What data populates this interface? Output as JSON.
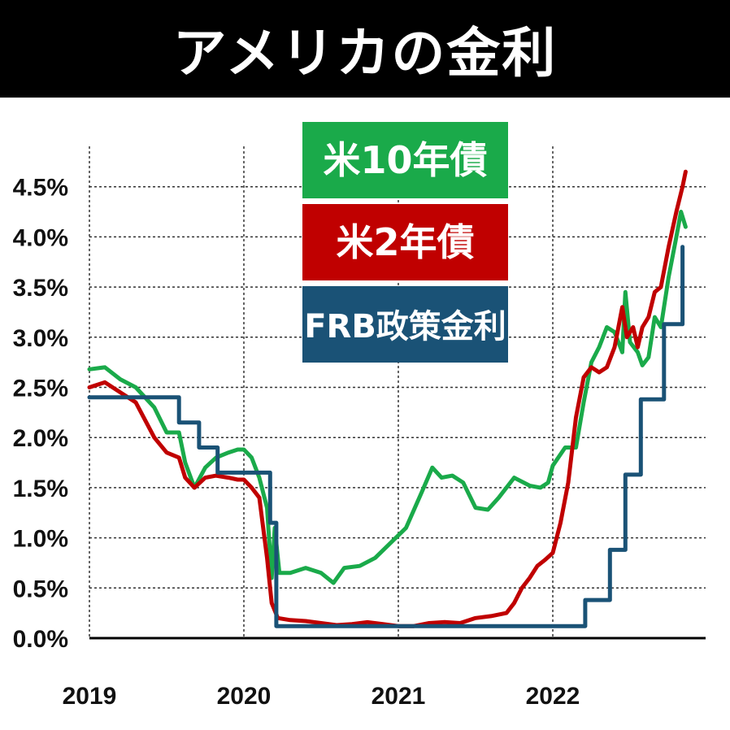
{
  "header": {
    "title": "アメリカの金利"
  },
  "chart_data": {
    "type": "line",
    "title": "アメリカの金利",
    "ylim": [
      0,
      5.0
    ],
    "yticks": [
      "4.5%",
      "4.0%",
      "3.5%",
      "3.0%",
      "2.5%",
      "2.0%",
      "1.5%",
      "1.0%",
      "0.5%",
      "0.0%"
    ],
    "ytick_values": [
      4.5,
      4.0,
      3.5,
      3.0,
      2.5,
      2.0,
      1.5,
      1.0,
      0.5,
      0.0
    ],
    "xlim": [
      2019.0,
      2022.98
    ],
    "xticks": [
      "2019",
      "2020",
      "2021",
      "2022"
    ],
    "xtick_values": [
      2019,
      2020,
      2021,
      2022
    ],
    "grid": true,
    "legend_position": "top-center",
    "series": [
      {
        "name": "米10年債",
        "color": "#1aaa4a",
        "points": [
          [
            2019.0,
            2.68
          ],
          [
            2019.1,
            2.7
          ],
          [
            2019.2,
            2.58
          ],
          [
            2019.3,
            2.5
          ],
          [
            2019.42,
            2.3
          ],
          [
            2019.5,
            2.05
          ],
          [
            2019.58,
            2.05
          ],
          [
            2019.62,
            1.75
          ],
          [
            2019.68,
            1.5
          ],
          [
            2019.75,
            1.7
          ],
          [
            2019.82,
            1.8
          ],
          [
            2019.9,
            1.85
          ],
          [
            2019.96,
            1.88
          ],
          [
            2020.0,
            1.88
          ],
          [
            2020.05,
            1.8
          ],
          [
            2020.1,
            1.6
          ],
          [
            2020.15,
            1.3
          ],
          [
            2020.18,
            0.6
          ],
          [
            2020.2,
            1.1
          ],
          [
            2020.23,
            0.65
          ],
          [
            2020.3,
            0.65
          ],
          [
            2020.4,
            0.7
          ],
          [
            2020.5,
            0.65
          ],
          [
            2020.58,
            0.55
          ],
          [
            2020.65,
            0.7
          ],
          [
            2020.75,
            0.72
          ],
          [
            2020.85,
            0.8
          ],
          [
            2020.95,
            0.95
          ],
          [
            2021.05,
            1.1
          ],
          [
            2021.15,
            1.45
          ],
          [
            2021.22,
            1.7
          ],
          [
            2021.28,
            1.6
          ],
          [
            2021.35,
            1.62
          ],
          [
            2021.42,
            1.55
          ],
          [
            2021.5,
            1.3
          ],
          [
            2021.58,
            1.28
          ],
          [
            2021.65,
            1.4
          ],
          [
            2021.75,
            1.6
          ],
          [
            2021.85,
            1.52
          ],
          [
            2021.92,
            1.5
          ],
          [
            2021.97,
            1.55
          ],
          [
            2022.0,
            1.72
          ],
          [
            2022.08,
            1.9
          ],
          [
            2022.15,
            1.9
          ],
          [
            2022.2,
            2.35
          ],
          [
            2022.25,
            2.75
          ],
          [
            2022.3,
            2.9
          ],
          [
            2022.35,
            3.1
          ],
          [
            2022.4,
            3.05
          ],
          [
            2022.45,
            2.85
          ],
          [
            2022.47,
            3.45
          ],
          [
            2022.5,
            2.95
          ],
          [
            2022.55,
            2.85
          ],
          [
            2022.58,
            2.72
          ],
          [
            2022.62,
            2.8
          ],
          [
            2022.66,
            3.2
          ],
          [
            2022.7,
            3.1
          ],
          [
            2022.75,
            3.6
          ],
          [
            2022.8,
            4.0
          ],
          [
            2022.83,
            4.25
          ],
          [
            2022.86,
            4.1
          ]
        ]
      },
      {
        "name": "米2年債",
        "color": "#c00000",
        "points": [
          [
            2019.0,
            2.5
          ],
          [
            2019.1,
            2.55
          ],
          [
            2019.2,
            2.45
          ],
          [
            2019.3,
            2.35
          ],
          [
            2019.42,
            2.0
          ],
          [
            2019.5,
            1.85
          ],
          [
            2019.58,
            1.8
          ],
          [
            2019.62,
            1.6
          ],
          [
            2019.68,
            1.5
          ],
          [
            2019.75,
            1.6
          ],
          [
            2019.82,
            1.62
          ],
          [
            2019.9,
            1.6
          ],
          [
            2019.96,
            1.58
          ],
          [
            2020.0,
            1.58
          ],
          [
            2020.05,
            1.5
          ],
          [
            2020.1,
            1.4
          ],
          [
            2020.15,
            0.8
          ],
          [
            2020.18,
            0.35
          ],
          [
            2020.22,
            0.2
          ],
          [
            2020.3,
            0.18
          ],
          [
            2020.4,
            0.17
          ],
          [
            2020.5,
            0.15
          ],
          [
            2020.6,
            0.13
          ],
          [
            2020.7,
            0.14
          ],
          [
            2020.8,
            0.16
          ],
          [
            2020.9,
            0.14
          ],
          [
            2021.0,
            0.12
          ],
          [
            2021.1,
            0.12
          ],
          [
            2021.2,
            0.15
          ],
          [
            2021.3,
            0.16
          ],
          [
            2021.4,
            0.15
          ],
          [
            2021.5,
            0.2
          ],
          [
            2021.6,
            0.22
          ],
          [
            2021.7,
            0.25
          ],
          [
            2021.75,
            0.35
          ],
          [
            2021.8,
            0.5
          ],
          [
            2021.85,
            0.6
          ],
          [
            2021.9,
            0.72
          ],
          [
            2021.95,
            0.78
          ],
          [
            2022.0,
            0.85
          ],
          [
            2022.05,
            1.15
          ],
          [
            2022.1,
            1.55
          ],
          [
            2022.15,
            2.2
          ],
          [
            2022.2,
            2.6
          ],
          [
            2022.25,
            2.7
          ],
          [
            2022.3,
            2.65
          ],
          [
            2022.35,
            2.7
          ],
          [
            2022.4,
            2.9
          ],
          [
            2022.45,
            3.3
          ],
          [
            2022.48,
            3.0
          ],
          [
            2022.52,
            3.1
          ],
          [
            2022.55,
            2.9
          ],
          [
            2022.58,
            3.1
          ],
          [
            2022.62,
            3.2
          ],
          [
            2022.66,
            3.45
          ],
          [
            2022.7,
            3.5
          ],
          [
            2022.75,
            3.9
          ],
          [
            2022.8,
            4.25
          ],
          [
            2022.84,
            4.5
          ],
          [
            2022.86,
            4.65
          ]
        ]
      },
      {
        "name": "FRB政策金利",
        "color": "#1a5276",
        "step": true,
        "points": [
          [
            2019.0,
            2.4
          ],
          [
            2019.58,
            2.15
          ],
          [
            2019.71,
            1.9
          ],
          [
            2019.83,
            1.65
          ],
          [
            2020.17,
            1.15
          ],
          [
            2020.21,
            0.12
          ],
          [
            2022.21,
            0.38
          ],
          [
            2022.37,
            0.88
          ],
          [
            2022.47,
            1.63
          ],
          [
            2022.57,
            2.38
          ],
          [
            2022.72,
            3.13
          ],
          [
            2022.84,
            3.9
          ]
        ]
      }
    ],
    "legend": [
      {
        "label": "米10年債",
        "color": "#1aaa4a"
      },
      {
        "label": "米2年債",
        "color": "#c00000"
      },
      {
        "label": "FRB政策金利",
        "color": "#1a5276"
      }
    ]
  }
}
